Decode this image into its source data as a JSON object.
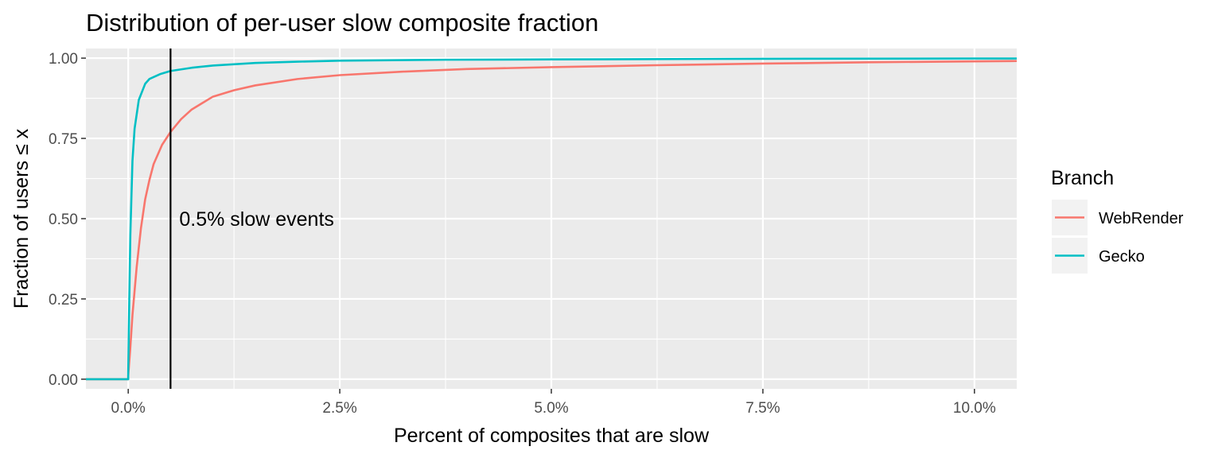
{
  "chart_data": {
    "type": "line",
    "title": "Distribution of per-user slow composite fraction",
    "xlabel": "Percent of composites that are slow",
    "ylabel": "Fraction of users ≤ x",
    "xlim": [
      -0.2,
      4.2
    ],
    "ylim": [
      -0.03,
      1.03
    ],
    "x_ticks": [
      0,
      1,
      2,
      3,
      4
    ],
    "x_tick_labels": [
      "0.0%",
      "2.5%",
      "5.0%",
      "7.5%",
      "10.0%"
    ],
    "y_ticks": [
      0,
      0.25,
      0.5,
      0.75,
      1.0
    ],
    "y_tick_labels": [
      "0.00",
      "0.25",
      "0.50",
      "0.75",
      "1.00"
    ],
    "grid": true,
    "legend": {
      "title": "Branch",
      "position": "right"
    },
    "vline": {
      "x": 0.2,
      "label": "0.5% slow events",
      "label_y": 0.5
    },
    "series": [
      {
        "name": "WebRender",
        "color": "#F8766D",
        "x": [
          -0.2,
          0.0,
          0.0,
          0.01,
          0.02,
          0.04,
          0.06,
          0.08,
          0.1,
          0.12,
          0.16,
          0.2,
          0.25,
          0.3,
          0.4,
          0.5,
          0.6,
          0.8,
          1.0,
          1.3,
          1.6,
          2.0,
          2.5,
          3.0,
          3.5,
          4.0,
          4.2
        ],
        "y": [
          0.0,
          0.0,
          0.01,
          0.1,
          0.2,
          0.35,
          0.47,
          0.56,
          0.62,
          0.67,
          0.73,
          0.77,
          0.81,
          0.84,
          0.88,
          0.9,
          0.915,
          0.935,
          0.947,
          0.958,
          0.966,
          0.972,
          0.978,
          0.983,
          0.987,
          0.99,
          0.991
        ]
      },
      {
        "name": "Gecko",
        "color": "#00BFC4",
        "x": [
          -0.2,
          0.0,
          0.0,
          0.005,
          0.01,
          0.02,
          0.03,
          0.05,
          0.08,
          0.1,
          0.15,
          0.2,
          0.3,
          0.4,
          0.6,
          0.8,
          1.0,
          1.5,
          2.0,
          3.0,
          4.0,
          4.2
        ],
        "y": [
          0.0,
          0.0,
          0.02,
          0.25,
          0.45,
          0.68,
          0.78,
          0.87,
          0.92,
          0.935,
          0.95,
          0.96,
          0.97,
          0.977,
          0.985,
          0.989,
          0.992,
          0.995,
          0.996,
          0.998,
          0.999,
          0.999
        ]
      }
    ]
  }
}
